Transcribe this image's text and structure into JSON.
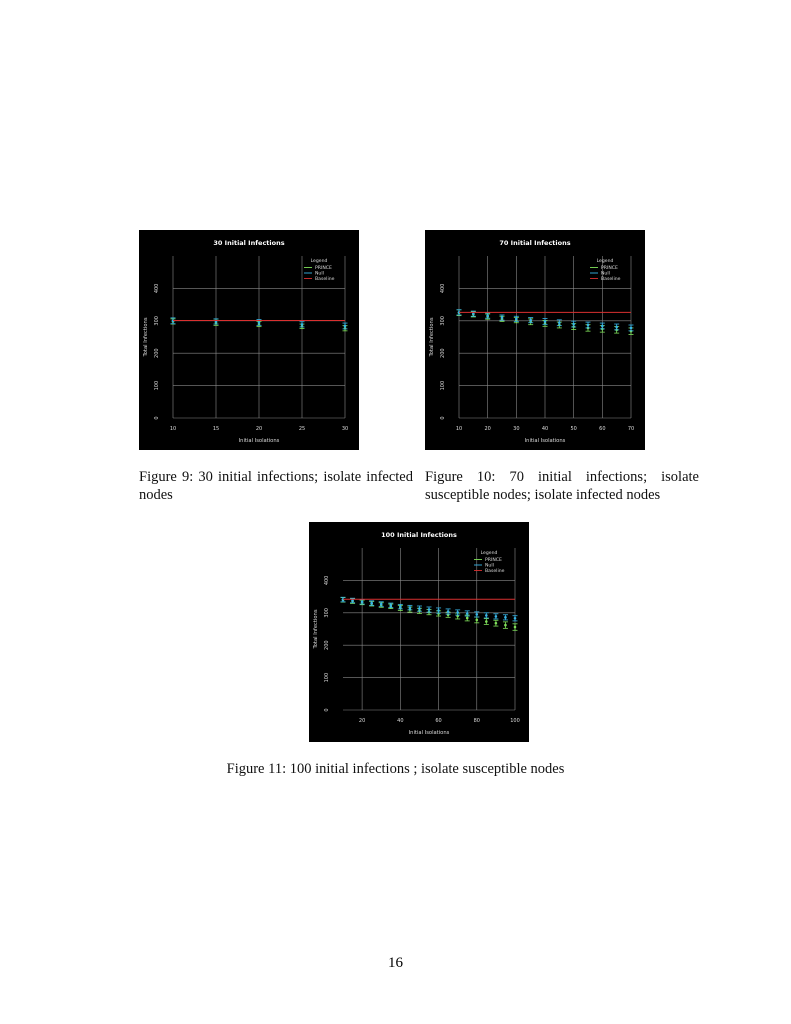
{
  "figures": [
    {
      "caption": "Figure 9: 30 initial infections; isolate infected nodes",
      "chart_data": {
        "type": "scatter",
        "title": "30 Initial Infections",
        "xlabel": "Initial Isolations",
        "ylabel": "Total Infections",
        "xlim": [
          10,
          30
        ],
        "ylim": [
          0,
          500
        ],
        "xticks": [
          10,
          15,
          20,
          25,
          30
        ],
        "yticks": [
          0,
          100,
          200,
          300,
          400
        ],
        "grid": true,
        "legend_title": "Legend",
        "legend_position": "top-right",
        "x": [
          10,
          15,
          20,
          25,
          30
        ],
        "series": [
          {
            "name": "PRINCE",
            "color": "#7fe05a",
            "values": [
              298,
              294,
              290,
              283,
              277
            ],
            "err": [
              8,
              8,
              8,
              7,
              8
            ]
          },
          {
            "name": "Null",
            "color": "#38b6e8",
            "values": [
              300,
              298,
              295,
              289,
              284
            ],
            "err": [
              9,
              8,
              9,
              8,
              9
            ]
          },
          {
            "name": "Baseline",
            "color": "#d93030",
            "values": [
              301,
              301,
              301,
              301,
              301
            ]
          }
        ]
      }
    },
    {
      "caption": "Figure 10: 70 initial infections; isolate susceptible nodes; isolate infected nodes",
      "chart_data": {
        "type": "scatter",
        "title": "70 Initial Infections",
        "xlabel": "Initial Isolations",
        "ylabel": "Total Infections",
        "xlim": [
          10,
          70
        ],
        "ylim": [
          0,
          500
        ],
        "xticks": [
          10,
          20,
          30,
          40,
          50,
          60,
          70
        ],
        "yticks": [
          0,
          100,
          200,
          300,
          400
        ],
        "grid": true,
        "legend_title": "Legend",
        "legend_position": "top-right",
        "x": [
          10,
          15,
          20,
          25,
          30,
          35,
          40,
          45,
          50,
          55,
          60,
          65,
          70
        ],
        "series": [
          {
            "name": "PRINCE",
            "color": "#7fe05a",
            "values": [
              325,
              320,
              313,
              306,
              302,
              297,
              292,
              287,
              282,
              278,
              275,
              272,
              268
            ],
            "err": [
              9,
              8,
              8,
              8,
              8,
              9,
              9,
              9,
              9,
              10,
              10,
              10,
              10
            ]
          },
          {
            "name": "Null",
            "color": "#38b6e8",
            "values": [
              326,
              322,
              316,
              310,
              306,
              302,
              298,
              294,
              290,
              287,
              284,
              281,
              278
            ],
            "err": [
              8,
              8,
              8,
              8,
              8,
              8,
              9,
              9,
              9,
              9,
              9,
              9,
              9
            ]
          },
          {
            "name": "Baseline",
            "color": "#d93030",
            "values": [
              326,
              326,
              326,
              326,
              326,
              326,
              326,
              326,
              326,
              326,
              326,
              326,
              326
            ]
          }
        ]
      }
    },
    {
      "caption": "Figure 11: 100 initial infections ; isolate susceptible nodes",
      "chart_data": {
        "type": "scatter",
        "title": "100 Initial Infections",
        "xlabel": "Initial Isolations",
        "ylabel": "Total Infections",
        "xlim": [
          10,
          100
        ],
        "ylim": [
          0,
          500
        ],
        "xticks": [
          20,
          40,
          60,
          80,
          100
        ],
        "yticks": [
          0,
          100,
          200,
          300,
          400
        ],
        "grid": true,
        "legend_title": "Legend",
        "legend_position": "top-right",
        "x": [
          10,
          15,
          20,
          25,
          30,
          35,
          40,
          45,
          50,
          55,
          60,
          65,
          70,
          75,
          80,
          85,
          90,
          95,
          100
        ],
        "series": [
          {
            "name": "PRINCE",
            "color": "#7fe05a",
            "values": [
              340,
              336,
              332,
              328,
              324,
              320,
              315,
              310,
              306,
              302,
              298,
              294,
              290,
              284,
              278,
              273,
              268,
              262,
              256
            ],
            "err": [
              7,
              7,
              7,
              7,
              7,
              7,
              8,
              8,
              8,
              8,
              8,
              8,
              9,
              9,
              9,
              9,
              9,
              10,
              10
            ]
          },
          {
            "name": "Null",
            "color": "#38b6e8",
            "values": [
              341,
              338,
              334,
              330,
              327,
              323,
              319,
              316,
              313,
              310,
              307,
              304,
              301,
              298,
              295,
              292,
              289,
              286,
              283
            ],
            "err": [
              7,
              7,
              7,
              7,
              7,
              7,
              7,
              7,
              8,
              8,
              8,
              8,
              8,
              8,
              8,
              8,
              8,
              8,
              8
            ]
          },
          {
            "name": "Baseline",
            "color": "#d93030",
            "values": [
              342,
              342,
              342,
              342,
              342,
              342,
              342,
              342,
              342,
              342,
              342,
              342,
              342,
              342,
              342,
              342,
              342,
              342,
              342
            ]
          }
        ]
      }
    }
  ],
  "page_number": "16"
}
